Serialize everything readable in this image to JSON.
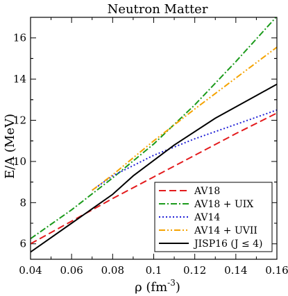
{
  "chart_data": {
    "type": "line",
    "title": "Neutron Matter",
    "xlabel": "ρ (fm",
    "xlabel_sup": "-3",
    "xlabel_close": ")",
    "ylabel": "E/A (MeV)",
    "xlim": [
      0.04,
      0.16
    ],
    "ylim": [
      5.25,
      17.0
    ],
    "xticks": [
      0.04,
      0.06,
      0.08,
      0.1,
      0.12,
      0.14,
      0.16
    ],
    "xtick_labels": [
      "0.04",
      "0.06",
      "0.08",
      "0.1",
      "0.12",
      "0.14",
      "0.16"
    ],
    "yticks": [
      6,
      8,
      10,
      12,
      14,
      16
    ],
    "ytick_labels": [
      "6",
      "8",
      "10",
      "12",
      "14",
      "16"
    ],
    "grid": false,
    "legend_position": "bottom-right",
    "series": [
      {
        "name": "AV18",
        "color": "#e31a1c",
        "dash": "dashed",
        "x": [
          0.04,
          0.06,
          0.08,
          0.1,
          0.12,
          0.14,
          0.16
        ],
        "y": [
          6.0,
          7.1,
          8.2,
          9.25,
          10.3,
          11.35,
          12.35
        ]
      },
      {
        "name": "AV18 + UIX",
        "color": "#1a9a1a",
        "dash": "dash-dot",
        "x": [
          0.04,
          0.06,
          0.08,
          0.1,
          0.12,
          0.14,
          0.16
        ],
        "y": [
          6.25,
          7.65,
          9.2,
          10.85,
          12.75,
          14.85,
          17.05
        ]
      },
      {
        "name": "AV14",
        "color": "#1f1fd6",
        "dash": "dotted",
        "x": [
          0.07,
          0.08,
          0.1,
          0.12,
          0.14,
          0.16
        ],
        "y": [
          8.6,
          9.3,
          10.3,
          11.1,
          11.8,
          12.5
        ]
      },
      {
        "name": "AV14 + UVII",
        "color": "#f5a300",
        "dash": "dash-dot-dot",
        "x": [
          0.07,
          0.08,
          0.1,
          0.12,
          0.14,
          0.16
        ],
        "y": [
          8.6,
          9.35,
          11.0,
          12.55,
          14.05,
          15.55
        ]
      },
      {
        "name": "JISP16 (J ≤ 4)",
        "color": "#000000",
        "dash": "solid",
        "x": [
          0.04,
          0.06,
          0.08,
          0.09,
          0.11,
          0.13,
          0.15,
          0.16
        ],
        "y": [
          5.6,
          7.0,
          8.4,
          9.3,
          10.8,
          12.1,
          13.2,
          13.75
        ]
      }
    ]
  }
}
